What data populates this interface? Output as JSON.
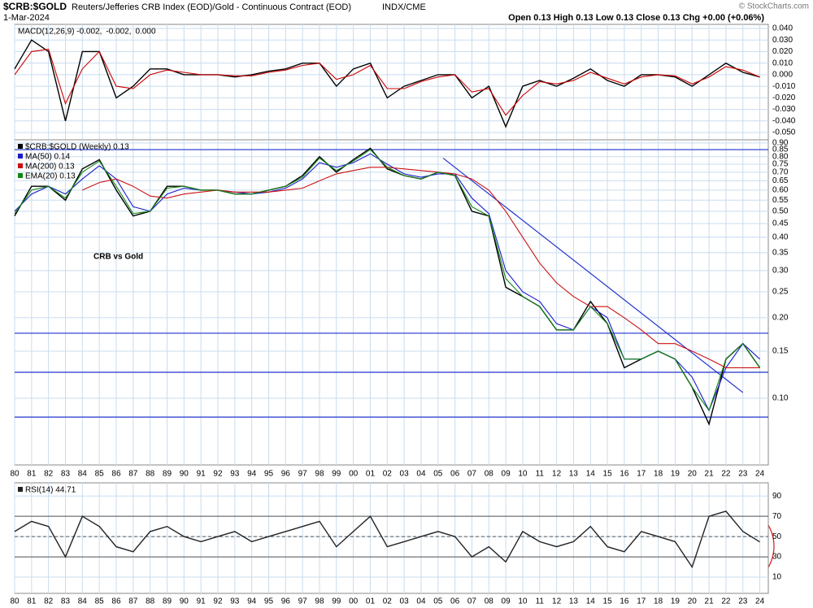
{
  "header": {
    "symbol": "$CRB:$GOLD",
    "description": "Reuters/Jefferies CRB Index (EOD)/Gold - Continuous Contract (EOD)",
    "exchange": "INDX/CME",
    "date": "1-Mar-2024",
    "quote": "Open 0.13  High 0.13  Low 0.13  Close 0.13  Chg +0.00 (+0.06%)",
    "credit": "© StockCharts.com"
  },
  "chart_data": [
    {
      "type": "line",
      "panel": "macd",
      "x": [
        1980,
        1981,
        1982,
        1983,
        1984,
        1985,
        1986,
        1987,
        1988,
        1989,
        1990,
        1991,
        1992,
        1993,
        1994,
        1995,
        1996,
        1997,
        1998,
        1999,
        2000,
        2001,
        2002,
        2003,
        2004,
        2005,
        2006,
        2007,
        2008,
        2009,
        2010,
        2011,
        2012,
        2013,
        2014,
        2015,
        2016,
        2017,
        2018,
        2019,
        2020,
        2021,
        2022,
        2023,
        2024
      ],
      "xlim": [
        1980,
        2024.5
      ],
      "ylim": [
        -0.0563,
        0.0435
      ],
      "yticks": [
        {
          "value": 0.04,
          "label": "0.040"
        },
        {
          "value": 0.03,
          "label": "0.030"
        },
        {
          "value": 0.02,
          "label": "0.020"
        },
        {
          "value": 0.01,
          "label": "0.010"
        },
        {
          "value": 0,
          "label": "0.000"
        },
        {
          "value": -0.01,
          "label": "-0.010"
        },
        {
          "value": -0.02,
          "label": "-0.020"
        },
        {
          "value": -0.03,
          "label": "-0.030"
        },
        {
          "value": -0.04,
          "label": "-0.040"
        },
        {
          "value": -0.05,
          "label": "-0.050"
        }
      ],
      "histogram_legend": "0.000",
      "series": [
        {
          "name": "MACD(12,26,9) -0.002,",
          "color": "#000000",
          "values": [
            0.005,
            0.03,
            0.02,
            -0.04,
            0.02,
            0.02,
            -0.02,
            -0.01,
            0.005,
            0.005,
            0.0,
            0.0,
            0.0,
            -0.002,
            0.0,
            0.003,
            0.005,
            0.01,
            0.01,
            -0.01,
            0.005,
            0.01,
            -0.02,
            -0.01,
            -0.005,
            0.0,
            0.0,
            -0.02,
            -0.01,
            -0.045,
            -0.01,
            -0.005,
            -0.01,
            -0.003,
            0.005,
            -0.005,
            -0.01,
            0.0,
            0.0,
            -0.002,
            -0.01,
            0.0,
            0.01,
            0.002,
            -0.002
          ]
        },
        {
          "name": "-0.002,",
          "color": "#cc0000",
          "values": [
            0.0,
            0.02,
            0.022,
            -0.025,
            0.005,
            0.02,
            -0.01,
            -0.012,
            0.0,
            0.004,
            0.002,
            0.0,
            0.0,
            -0.001,
            -0.001,
            0.002,
            0.004,
            0.008,
            0.01,
            -0.004,
            0.0,
            0.008,
            -0.012,
            -0.012,
            -0.006,
            -0.002,
            0.0,
            -0.015,
            -0.012,
            -0.035,
            -0.018,
            -0.006,
            -0.008,
            -0.005,
            0.002,
            -0.003,
            -0.008,
            -0.002,
            0.0,
            -0.001,
            -0.008,
            -0.002,
            0.007,
            0.004,
            -0.002
          ]
        }
      ]
    },
    {
      "type": "line",
      "panel": "price",
      "log_scale": true,
      "annotation": "CRB vs Gold",
      "x": [
        1980,
        1981,
        1982,
        1983,
        1984,
        1985,
        1986,
        1987,
        1988,
        1989,
        1990,
        1991,
        1992,
        1993,
        1994,
        1995,
        1996,
        1997,
        1998,
        1999,
        2000,
        2001,
        2002,
        2003,
        2004,
        2005,
        2006,
        2007,
        2008,
        2009,
        2010,
        2011,
        2012,
        2013,
        2014,
        2015,
        2016,
        2017,
        2018,
        2019,
        2020,
        2021,
        2022,
        2023,
        2024
      ],
      "xlim": [
        1980,
        2024.5
      ],
      "ylim": [
        0.0563,
        0.925
      ],
      "xticks": [
        {
          "value": 1980,
          "label": "80"
        },
        {
          "value": 1981,
          "label": "81"
        },
        {
          "value": 1982,
          "label": "82"
        },
        {
          "value": 1983,
          "label": "83"
        },
        {
          "value": 1984,
          "label": "84"
        },
        {
          "value": 1985,
          "label": "85"
        },
        {
          "value": 1986,
          "label": "86"
        },
        {
          "value": 1987,
          "label": "87"
        },
        {
          "value": 1988,
          "label": "88"
        },
        {
          "value": 1989,
          "label": "89"
        },
        {
          "value": 1990,
          "label": "90"
        },
        {
          "value": 1991,
          "label": "91"
        },
        {
          "value": 1992,
          "label": "92"
        },
        {
          "value": 1993,
          "label": "93"
        },
        {
          "value": 1994,
          "label": "94"
        },
        {
          "value": 1995,
          "label": "95"
        },
        {
          "value": 1996,
          "label": "96"
        },
        {
          "value": 1997,
          "label": "97"
        },
        {
          "value": 1998,
          "label": "98"
        },
        {
          "value": 1999,
          "label": "99"
        },
        {
          "value": 2000,
          "label": "00"
        },
        {
          "value": 2001,
          "label": "01"
        },
        {
          "value": 2002,
          "label": "02"
        },
        {
          "value": 2003,
          "label": "03"
        },
        {
          "value": 2004,
          "label": "04"
        },
        {
          "value": 2005,
          "label": "05"
        },
        {
          "value": 2006,
          "label": "06"
        },
        {
          "value": 2007,
          "label": "07"
        },
        {
          "value": 2008,
          "label": "08"
        },
        {
          "value": 2009,
          "label": "09"
        },
        {
          "value": 2010,
          "label": "10"
        },
        {
          "value": 2011,
          "label": "11"
        },
        {
          "value": 2012,
          "label": "12"
        },
        {
          "value": 2013,
          "label": "13"
        },
        {
          "value": 2014,
          "label": "14"
        },
        {
          "value": 2015,
          "label": "15"
        },
        {
          "value": 2016,
          "label": "16"
        },
        {
          "value": 2017,
          "label": "17"
        },
        {
          "value": 2018,
          "label": "18"
        },
        {
          "value": 2019,
          "label": "19"
        },
        {
          "value": 2020,
          "label": "20"
        },
        {
          "value": 2021,
          "label": "21"
        },
        {
          "value": 2022,
          "label": "22"
        },
        {
          "value": 2023,
          "label": "23"
        },
        {
          "value": 2024,
          "label": "24"
        }
      ],
      "yticks": [
        {
          "value": 0.9,
          "label": "0.90"
        },
        0.85,
        {
          "value": 0.8,
          "label": "0.80"
        },
        0.75,
        {
          "value": 0.7,
          "label": "0.70"
        },
        0.65,
        {
          "value": 0.6,
          "label": "0.60"
        },
        0.55,
        {
          "value": 0.5,
          "label": "0.50"
        },
        0.45,
        {
          "value": 0.4,
          "label": "0.40"
        },
        0.35,
        {
          "value": 0.3,
          "label": "0.30"
        },
        0.25,
        {
          "value": 0.2,
          "label": "0.20"
        },
        0.15,
        {
          "value": 0.1,
          "label": "0.10"
        }
      ],
      "hlines": [
        0.85,
        0.175,
        0.125,
        0.085
      ],
      "hline_color": "#2233cc",
      "trendline": {
        "x": [
          2005.3,
          2023.0
        ],
        "y": [
          0.79,
          0.105
        ]
      },
      "series": [
        {
          "name": "$CRB:$GOLD (Weekly) 0.13",
          "color": "#000000",
          "values": [
            0.48,
            0.62,
            0.62,
            0.55,
            0.72,
            0.78,
            0.6,
            0.48,
            0.5,
            0.62,
            0.62,
            0.6,
            0.6,
            0.58,
            0.58,
            0.6,
            0.62,
            0.68,
            0.8,
            0.7,
            0.78,
            0.86,
            0.72,
            0.68,
            0.66,
            0.7,
            0.68,
            0.5,
            0.48,
            0.26,
            0.24,
            0.22,
            0.18,
            0.18,
            0.23,
            0.19,
            0.13,
            0.14,
            0.15,
            0.14,
            0.11,
            0.08,
            0.14,
            0.16,
            0.13
          ]
        },
        {
          "name": "MA(50) 0.14",
          "color": "#1a1acc",
          "values": [
            0.5,
            0.58,
            0.62,
            0.58,
            0.66,
            0.74,
            0.66,
            0.52,
            0.5,
            0.58,
            0.61,
            0.6,
            0.6,
            0.59,
            0.58,
            0.59,
            0.61,
            0.66,
            0.76,
            0.73,
            0.76,
            0.82,
            0.75,
            0.69,
            0.67,
            0.69,
            0.69,
            0.56,
            0.49,
            0.3,
            0.25,
            0.23,
            0.19,
            0.18,
            0.22,
            0.2,
            0.14,
            0.14,
            0.15,
            0.14,
            0.12,
            0.09,
            0.13,
            0.16,
            0.14
          ]
        },
        {
          "name": "MA(200) 0.13",
          "color": "#cc1111",
          "values": [
            null,
            null,
            null,
            null,
            0.6,
            0.64,
            0.66,
            0.62,
            0.57,
            0.56,
            0.58,
            0.59,
            0.6,
            0.59,
            0.59,
            0.59,
            0.6,
            0.61,
            0.65,
            0.69,
            0.71,
            0.73,
            0.73,
            0.72,
            0.71,
            0.7,
            0.69,
            0.66,
            0.6,
            0.5,
            0.4,
            0.32,
            0.27,
            0.24,
            0.22,
            0.22,
            0.2,
            0.18,
            0.16,
            0.16,
            0.15,
            0.14,
            0.13,
            0.13,
            0.13
          ]
        },
        {
          "name": "EMA(20) 0.13",
          "color": "#118811",
          "values": [
            0.49,
            0.6,
            0.62,
            0.56,
            0.7,
            0.77,
            0.62,
            0.49,
            0.5,
            0.61,
            0.62,
            0.6,
            0.6,
            0.58,
            0.58,
            0.6,
            0.62,
            0.67,
            0.79,
            0.71,
            0.77,
            0.85,
            0.73,
            0.68,
            0.66,
            0.7,
            0.68,
            0.52,
            0.48,
            0.28,
            0.24,
            0.22,
            0.18,
            0.18,
            0.22,
            0.19,
            0.14,
            0.14,
            0.15,
            0.14,
            0.11,
            0.09,
            0.14,
            0.16,
            0.13
          ]
        }
      ]
    },
    {
      "type": "line",
      "panel": "rsi",
      "x": [
        1980,
        1981,
        1982,
        1983,
        1984,
        1985,
        1986,
        1987,
        1988,
        1989,
        1990,
        1991,
        1992,
        1993,
        1994,
        1995,
        1996,
        1997,
        1998,
        1999,
        2000,
        2001,
        2002,
        2003,
        2004,
        2005,
        2006,
        2007,
        2008,
        2009,
        2010,
        2011,
        2012,
        2013,
        2014,
        2015,
        2016,
        2017,
        2018,
        2019,
        2020,
        2021,
        2022,
        2023,
        2024
      ],
      "xlim": [
        1980,
        2024.5
      ],
      "ylim": [
        -6,
        103
      ],
      "xticks": [
        {
          "value": 1980,
          "label": "80"
        },
        {
          "value": 1981,
          "label": "81"
        },
        {
          "value": 1982,
          "label": "82"
        },
        {
          "value": 1983,
          "label": "83"
        },
        {
          "value": 1984,
          "label": "84"
        },
        {
          "value": 1985,
          "label": "85"
        },
        {
          "value": 1986,
          "label": "86"
        },
        {
          "value": 1987,
          "label": "87"
        },
        {
          "value": 1988,
          "label": "88"
        },
        {
          "value": 1989,
          "label": "89"
        },
        {
          "value": 1990,
          "label": "90"
        },
        {
          "value": 1991,
          "label": "91"
        },
        {
          "value": 1992,
          "label": "92"
        },
        {
          "value": 1993,
          "label": "93"
        },
        {
          "value": 1994,
          "label": "94"
        },
        {
          "value": 1995,
          "label": "95"
        },
        {
          "value": 1996,
          "label": "96"
        },
        {
          "value": 1997,
          "label": "97"
        },
        {
          "value": 1998,
          "label": "98"
        },
        {
          "value": 1999,
          "label": "99"
        },
        {
          "value": 2000,
          "label": "00"
        },
        {
          "value": 2001,
          "label": "01"
        },
        {
          "value": 2002,
          "label": "02"
        },
        {
          "value": 2003,
          "label": "03"
        },
        {
          "value": 2004,
          "label": "04"
        },
        {
          "value": 2005,
          "label": "05"
        },
        {
          "value": 2006,
          "label": "06"
        },
        {
          "value": 2007,
          "label": "07"
        },
        {
          "value": 2008,
          "label": "08"
        },
        {
          "value": 2009,
          "label": "09"
        },
        {
          "value": 2010,
          "label": "10"
        },
        {
          "value": 2011,
          "label": "11"
        },
        {
          "value": 2012,
          "label": "12"
        },
        {
          "value": 2013,
          "label": "13"
        },
        {
          "value": 2014,
          "label": "14"
        },
        {
          "value": 2015,
          "label": "15"
        },
        {
          "value": 2016,
          "label": "16"
        },
        {
          "value": 2017,
          "label": "17"
        },
        {
          "value": 2018,
          "label": "18"
        },
        {
          "value": 2019,
          "label": "19"
        },
        {
          "value": 2020,
          "label": "20"
        },
        {
          "value": 2021,
          "label": "21"
        },
        {
          "value": 2022,
          "label": "22"
        },
        {
          "value": 2023,
          "label": "23"
        },
        {
          "value": 2024,
          "label": "24"
        }
      ],
      "yticks": [
        90,
        70,
        50,
        30,
        10
      ],
      "reference_lines": [
        70,
        50,
        30
      ],
      "series": [
        {
          "name": "RSI(14) 44.71",
          "color": "#222222",
          "values": [
            55,
            65,
            60,
            30,
            70,
            60,
            40,
            35,
            55,
            60,
            50,
            45,
            50,
            55,
            45,
            50,
            55,
            60,
            65,
            40,
            55,
            70,
            40,
            45,
            50,
            55,
            50,
            30,
            40,
            25,
            55,
            45,
            40,
            45,
            60,
            40,
            35,
            55,
            50,
            45,
            20,
            70,
            75,
            55,
            44.71
          ]
        }
      ]
    }
  ]
}
